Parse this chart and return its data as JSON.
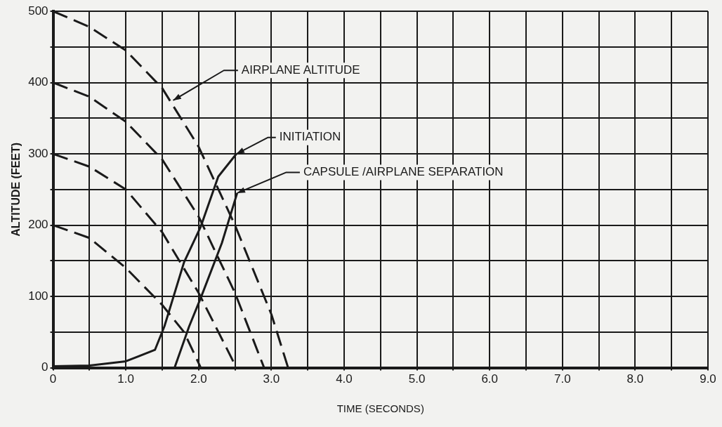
{
  "chart_data": {
    "type": "line",
    "xlabel": "TIME (SECONDS)",
    "ylabel": "ALTITUDE (FEET)",
    "xlim": [
      0,
      9
    ],
    "ylim": [
      0,
      500
    ],
    "xticks": [
      0,
      {
        "value": 0.5,
        "label": null
      },
      {
        "value": 1,
        "label": "1.0"
      },
      {
        "value": 1.5,
        "label": null
      },
      {
        "value": 2,
        "label": "2.0"
      },
      {
        "value": 2.5,
        "label": null
      },
      {
        "value": 3,
        "label": "3.0"
      },
      {
        "value": 3.5,
        "label": null
      },
      {
        "value": 4,
        "label": "4.0"
      },
      {
        "value": 4.5,
        "label": null
      },
      {
        "value": 5,
        "label": "5.0"
      },
      {
        "value": 5.5,
        "label": null
      },
      {
        "value": 6,
        "label": "6.0"
      },
      {
        "value": 6.5,
        "label": null
      },
      {
        "value": 7,
        "label": "7.0"
      },
      {
        "value": 7.5,
        "label": null
      },
      {
        "value": 8,
        "label": "8.0"
      },
      {
        "value": 8.5,
        "label": null
      },
      {
        "value": 9,
        "label": "9.0"
      }
    ],
    "yticks": [
      0,
      {
        "value": 50,
        "label": null
      },
      100,
      {
        "value": 150,
        "label": null
      },
      200,
      {
        "value": 250,
        "label": null
      },
      300,
      {
        "value": 350,
        "label": null
      },
      400,
      {
        "value": 450,
        "label": null
      },
      500
    ],
    "grid": true,
    "legend": false,
    "marker": "none",
    "series": [
      {
        "color": "#1a1a1a",
        "line_style": "dashed",
        "x": [
          0,
          0.5,
          1,
          1.5,
          2,
          2.5,
          3,
          3.23
        ],
        "values": [
          500,
          478,
          445,
          392,
          310,
          200,
          75,
          0
        ]
      },
      {
        "color": "#1a1a1a",
        "line_style": "dashed",
        "x": [
          0,
          0.5,
          1,
          1.5,
          2,
          2.5,
          2.9
        ],
        "values": [
          400,
          380,
          345,
          292,
          212,
          105,
          0
        ]
      },
      {
        "color": "#1a1a1a",
        "line_style": "dashed",
        "x": [
          0,
          0.5,
          1,
          1.5,
          2,
          2.52
        ],
        "values": [
          300,
          282,
          250,
          190,
          105,
          0
        ]
      },
      {
        "color": "#1a1a1a",
        "line_style": "dashed",
        "x": [
          0,
          0.5,
          1,
          1.5,
          1.8,
          2.03
        ],
        "values": [
          200,
          182,
          140,
          88,
          50,
          0
        ]
      },
      {
        "color": "#1a1a1a",
        "line_style": "solid",
        "x": [
          0,
          0.5,
          1,
          1.4,
          1.53,
          1.8,
          2.03,
          2.27,
          2.52
        ],
        "values": [
          2,
          3,
          9,
          25,
          58,
          148,
          198,
          268,
          300
        ]
      },
      {
        "color": "#1a1a1a",
        "line_style": "solid",
        "x": [
          1.67,
          1.87,
          2.03,
          2.32,
          2.53
        ],
        "values": [
          0,
          58,
          98,
          175,
          245
        ]
      }
    ],
    "annotations": [
      {
        "text": "AIRPLANE ALTITUDE",
        "x": 1.65,
        "y": 375
      },
      {
        "text": "INITIATION",
        "x": 2.52,
        "y": 300
      },
      {
        "text": "CAPSULE /AIRPLANE SEPARATION",
        "x": 2.53,
        "y": 245
      }
    ]
  }
}
